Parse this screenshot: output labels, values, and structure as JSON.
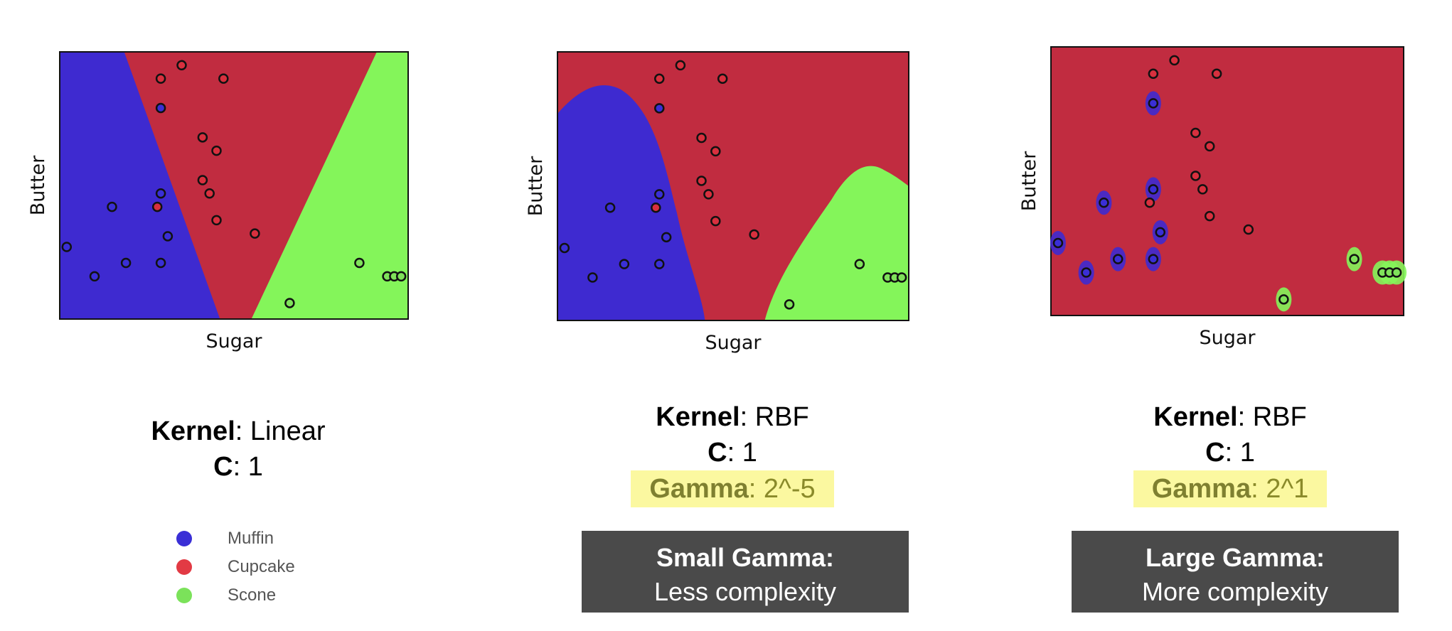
{
  "colors": {
    "muffin_region": "#3e2ad0",
    "cupcake_region": "#c12c40",
    "scone_region": "#84f55a",
    "muffin_point": "#3a2fd6",
    "cupcake_point": "#d8303e",
    "scone_point": "#7fe25a",
    "gamma_highlight": "#fbf8a0",
    "note_bg": "#4a4a4a"
  },
  "legend": [
    {
      "label": "Muffin",
      "color": "#3a2fd6"
    },
    {
      "label": "Cupcake",
      "color": "#e23a44"
    },
    {
      "label": "Scone",
      "color": "#7be25a"
    }
  ],
  "panels": [
    {
      "kernel_label": "Kernel",
      "kernel_value": ": Linear",
      "c_label": "C",
      "c_value": ": 1"
    },
    {
      "kernel_label": "Kernel",
      "kernel_value": ": RBF",
      "c_label": "C",
      "c_value": ": 1",
      "gamma_label": "Gamma",
      "gamma_value": ": 2^-5",
      "note_title": "Small Gamma:",
      "note_text": "Less complexity"
    },
    {
      "kernel_label": "Kernel",
      "kernel_value": ": RBF",
      "c_label": "C",
      "c_value": ": 1",
      "gamma_label": "Gamma",
      "gamma_value": ": 2^1",
      "note_title": "Large Gamma:",
      "note_text": "More complexity"
    }
  ],
  "chart_data": [
    {
      "type": "scatter",
      "title": "",
      "xlabel": "Sugar",
      "ylabel": "Butter",
      "xlim": [
        0,
        100
      ],
      "ylim": [
        0,
        100
      ],
      "grid": false,
      "decision_regions": "linear",
      "series": [
        {
          "name": "Muffin",
          "x": [
            2,
            10,
            19,
            15,
            29,
            31,
            29,
            29
          ],
          "y": [
            27,
            16,
            21,
            42,
            47,
            31,
            21,
            79
          ],
          "color": "#3a2fd6"
        },
        {
          "name": "Cupcake",
          "x": [
            29,
            35,
            47,
            41,
            45,
            43,
            41,
            45,
            56,
            28
          ],
          "y": [
            90,
            95,
            90,
            68,
            63,
            47,
            52,
            37,
            32,
            42
          ],
          "color": "#d8303e"
        },
        {
          "name": "Scone",
          "x": [
            66,
            86,
            94,
            96,
            98
          ],
          "y": [
            6,
            21,
            16,
            16,
            16
          ],
          "color": "#7fe25a"
        }
      ]
    },
    {
      "type": "scatter",
      "title": "",
      "xlabel": "Sugar",
      "ylabel": "Butter",
      "xlim": [
        0,
        100
      ],
      "ylim": [
        0,
        100
      ],
      "grid": false,
      "decision_regions": "rbf-small-gamma",
      "series": [
        {
          "name": "Muffin",
          "x": [
            2,
            10,
            19,
            15,
            29,
            31,
            29,
            29
          ],
          "y": [
            27,
            16,
            21,
            42,
            47,
            31,
            21,
            79
          ],
          "color": "#3a2fd6"
        },
        {
          "name": "Cupcake",
          "x": [
            29,
            35,
            47,
            41,
            45,
            43,
            41,
            45,
            56,
            28
          ],
          "y": [
            90,
            95,
            90,
            68,
            63,
            47,
            52,
            37,
            32,
            42
          ],
          "color": "#d8303e"
        },
        {
          "name": "Scone",
          "x": [
            66,
            86,
            94,
            96,
            98
          ],
          "y": [
            6,
            21,
            16,
            16,
            16
          ],
          "color": "#7fe25a"
        }
      ]
    },
    {
      "type": "scatter",
      "title": "",
      "xlabel": "Sugar",
      "ylabel": "Butter",
      "xlim": [
        0,
        100
      ],
      "ylim": [
        0,
        100
      ],
      "grid": false,
      "decision_regions": "rbf-large-gamma",
      "series": [
        {
          "name": "Muffin",
          "x": [
            2,
            10,
            19,
            15,
            29,
            31,
            29,
            29
          ],
          "y": [
            27,
            16,
            21,
            42,
            47,
            31,
            21,
            79
          ],
          "color": "#3a2fd6"
        },
        {
          "name": "Cupcake",
          "x": [
            29,
            35,
            47,
            41,
            45,
            43,
            41,
            45,
            56,
            28
          ],
          "y": [
            90,
            95,
            90,
            68,
            63,
            47,
            52,
            37,
            32,
            42
          ],
          "color": "#d8303e"
        },
        {
          "name": "Scone",
          "x": [
            66,
            86,
            94,
            96,
            98
          ],
          "y": [
            6,
            21,
            16,
            16,
            16
          ],
          "color": "#7fe25a"
        }
      ]
    }
  ]
}
